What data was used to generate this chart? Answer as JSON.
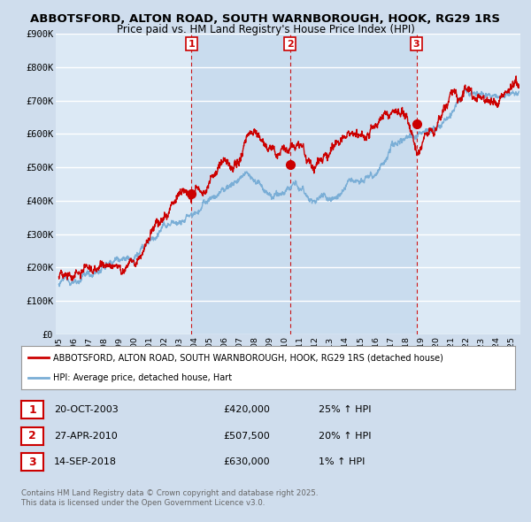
{
  "title1": "ABBOTSFORD, ALTON ROAD, SOUTH WARNBOROUGH, HOOK, RG29 1RS",
  "title2": "Price paid vs. HM Land Registry's House Price Index (HPI)",
  "bg_color": "#cfdded",
  "plot_bg_color": "#dce9f5",
  "grid_color": "#ffffff",
  "red_color": "#cc0000",
  "blue_color": "#7aaed6",
  "shade_color": "#b8d0e8",
  "ylim": [
    0,
    900000
  ],
  "yticks": [
    0,
    100000,
    200000,
    300000,
    400000,
    500000,
    600000,
    700000,
    800000,
    900000
  ],
  "ytick_labels": [
    "£0",
    "£100K",
    "£200K",
    "£300K",
    "£400K",
    "£500K",
    "£600K",
    "£700K",
    "£800K",
    "£900K"
  ],
  "sale_dates": [
    2003.8,
    2010.32,
    2018.71
  ],
  "sale_prices": [
    420000,
    507500,
    630000
  ],
  "sale_labels": [
    "1",
    "2",
    "3"
  ],
  "vline_color": "#cc0000",
  "legend_entries": [
    "ABBOTSFORD, ALTON ROAD, SOUTH WARNBOROUGH, HOOK, RG29 1RS (detached house)",
    "HPI: Average price, detached house, Hart"
  ],
  "table_rows": [
    [
      "1",
      "20-OCT-2003",
      "£420,000",
      "25% ↑ HPI"
    ],
    [
      "2",
      "27-APR-2010",
      "£507,500",
      "20% ↑ HPI"
    ],
    [
      "3",
      "14-SEP-2018",
      "£630,000",
      "1% ↑ HPI"
    ]
  ],
  "footer": "Contains HM Land Registry data © Crown copyright and database right 2025.\nThis data is licensed under the Open Government Licence v3.0.",
  "xlim_left": 1994.8,
  "xlim_right": 2025.6
}
